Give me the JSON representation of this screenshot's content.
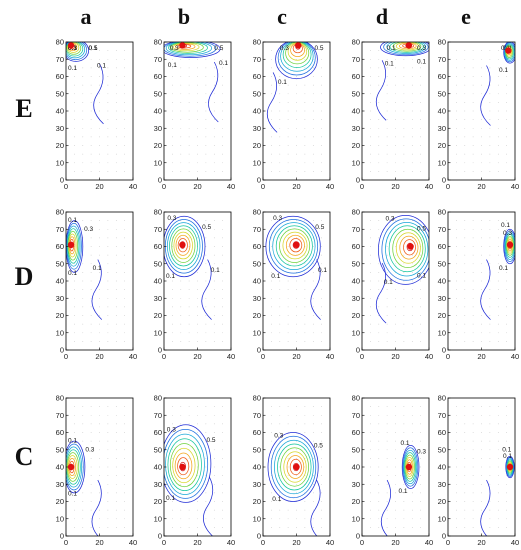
{
  "colors": {
    "contour_low": "#1f2bd6",
    "contour_high": "#d61f1f",
    "source_point": "#e01010"
  },
  "chart_data": {
    "type": "contour_grid",
    "title": "",
    "columns": [
      "a",
      "b",
      "c",
      "d",
      "e"
    ],
    "rows": [
      "E",
      "D",
      "C"
    ],
    "xlim": [
      0,
      40
    ],
    "ylim": [
      0,
      80
    ],
    "xticks": [
      "0",
      "20",
      "40"
    ],
    "yticks": [
      "0",
      "10",
      "20",
      "30",
      "40",
      "50",
      "60",
      "70",
      "80"
    ],
    "panels": [
      {
        "row": "E",
        "col": "a",
        "source": [
          3,
          78
        ],
        "peak": [
          6,
          75
        ],
        "spread": [
          6,
          5
        ],
        "contour_labels": [
          "0.5",
          "0.3",
          "0.1",
          "0.1",
          "0.1",
          "0.1"
        ]
      },
      {
        "row": "E",
        "col": "b",
        "source": [
          11,
          78
        ],
        "peak": [
          16,
          76
        ],
        "spread": [
          14,
          4
        ],
        "contour_labels": [
          "0.5",
          "0.3",
          "0.1",
          "0.1"
        ]
      },
      {
        "row": "E",
        "col": "c",
        "source": [
          21,
          78
        ],
        "peak": [
          20,
          70
        ],
        "spread": [
          10,
          9
        ],
        "contour_labels": [
          "0.5",
          "0.3",
          "0.1"
        ]
      },
      {
        "row": "E",
        "col": "d",
        "source": [
          28,
          78
        ],
        "peak": [
          26,
          77
        ],
        "spread": [
          12,
          4
        ],
        "contour_labels": [
          "0.3",
          "0.1",
          "0.1",
          "0.1"
        ]
      },
      {
        "row": "E",
        "col": "e",
        "source": [
          36,
          75
        ],
        "peak": [
          37,
          74
        ],
        "spread": [
          3,
          5
        ],
        "contour_labels": [
          "0.1",
          "0.1",
          "0.1"
        ]
      },
      {
        "row": "D",
        "col": "a",
        "source": [
          3,
          61
        ],
        "peak": [
          5,
          60
        ],
        "spread": [
          4,
          12
        ],
        "contour_labels": [
          "0.3",
          "0.1",
          "0.1",
          "0.1"
        ]
      },
      {
        "row": "D",
        "col": "b",
        "source": [
          11,
          61
        ],
        "peak": [
          12,
          60
        ],
        "spread": [
          10,
          14
        ],
        "contour_labels": [
          "0.5",
          "0.3",
          "0.1",
          "0.1"
        ]
      },
      {
        "row": "D",
        "col": "c",
        "source": [
          20,
          61
        ],
        "peak": [
          18,
          60
        ],
        "spread": [
          13,
          14
        ],
        "contour_labels": [
          "0.5",
          "0.3",
          "0.1",
          "0.1"
        ]
      },
      {
        "row": "D",
        "col": "d",
        "source": [
          29,
          60
        ],
        "peak": [
          26,
          58
        ],
        "spread": [
          13,
          16
        ],
        "contour_labels": [
          "0.5",
          "0.3",
          "0.1",
          "0.1"
        ]
      },
      {
        "row": "D",
        "col": "e",
        "source": [
          37,
          61
        ],
        "peak": [
          37,
          60
        ],
        "spread": [
          3,
          8
        ],
        "contour_labels": [
          "0.3",
          "0.1",
          "0.1"
        ]
      },
      {
        "row": "C",
        "col": "a",
        "source": [
          3,
          40
        ],
        "peak": [
          5,
          40
        ],
        "spread": [
          5,
          12
        ],
        "contour_labels": [
          "0.3",
          "0.1",
          "0.1"
        ]
      },
      {
        "row": "C",
        "col": "b",
        "source": [
          11,
          40
        ],
        "peak": [
          13,
          42
        ],
        "spread": [
          12,
          18
        ],
        "contour_labels": [
          "0.5",
          "0.3",
          "0.1"
        ]
      },
      {
        "row": "C",
        "col": "c",
        "source": [
          20,
          40
        ],
        "peak": [
          18,
          40
        ],
        "spread": [
          12,
          16
        ],
        "contour_labels": [
          "0.5",
          "0.3",
          "0.1"
        ]
      },
      {
        "row": "C",
        "col": "d",
        "source": [
          28,
          40
        ],
        "peak": [
          29,
          40
        ],
        "spread": [
          4,
          10
        ],
        "contour_labels": [
          "0.3",
          "0.1",
          "0.1"
        ]
      },
      {
        "row": "C",
        "col": "e",
        "source": [
          37,
          40
        ],
        "peak": [
          37,
          40
        ],
        "spread": [
          2,
          5
        ],
        "contour_labels": [
          "0.1",
          "0.1"
        ]
      }
    ]
  }
}
